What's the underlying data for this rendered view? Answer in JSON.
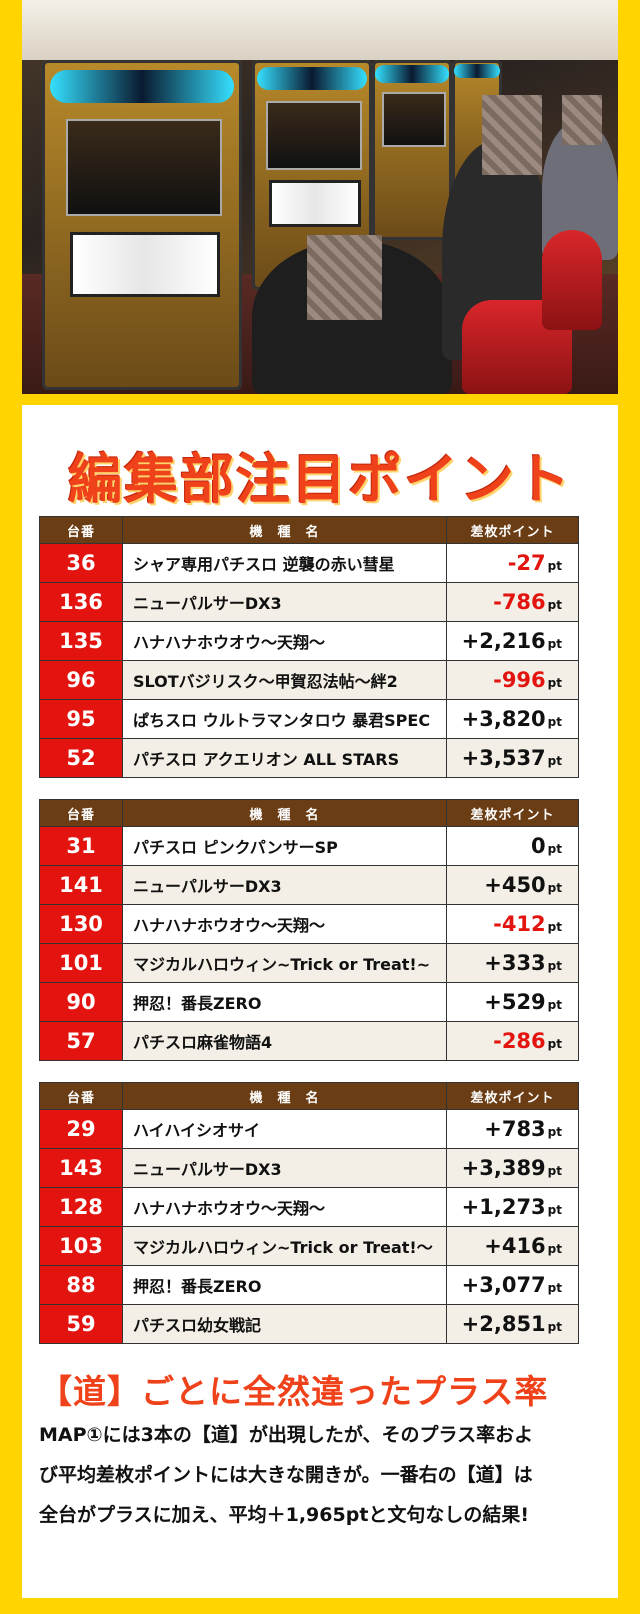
{
  "headline": "編集部注目ポイント",
  "table_headers": {
    "no": "台番",
    "model": "機　種　名",
    "points": "差枚ポイント"
  },
  "unit": "pt",
  "tables": [
    {
      "rows": [
        {
          "no": "36",
          "model": "シャア専用パチスロ 逆襲の赤い彗星",
          "points": "-27",
          "negative": true
        },
        {
          "no": "136",
          "model": "ニューパルサーDX3",
          "points": "-786",
          "negative": true
        },
        {
          "no": "135",
          "model": "ハナハナホウオウ～天翔～",
          "points": "+2,216",
          "negative": false
        },
        {
          "no": "96",
          "model": "SLOTバジリスク～甲賀忍法帖～絆2",
          "points": "-996",
          "negative": true
        },
        {
          "no": "95",
          "model": "ぱちスロ ウルトラマンタロウ 暴君SPEC",
          "points": "+3,820",
          "negative": false
        },
        {
          "no": "52",
          "model": "パチスロ アクエリオン ALL STARS",
          "points": "+3,537",
          "negative": false
        }
      ]
    },
    {
      "rows": [
        {
          "no": "31",
          "model": "パチスロ ピンクパンサーSP",
          "points": "0",
          "negative": false
        },
        {
          "no": "141",
          "model": "ニューパルサーDX3",
          "points": "+450",
          "negative": false
        },
        {
          "no": "130",
          "model": "ハナハナホウオウ～天翔～",
          "points": "-412",
          "negative": true
        },
        {
          "no": "101",
          "model": "マジカルハロウィン~Trick or Treat!~",
          "points": "+333",
          "negative": false
        },
        {
          "no": "90",
          "model": "押忍！番長ZERO",
          "points": "+529",
          "negative": false
        },
        {
          "no": "57",
          "model": "パチスロ麻雀物語4",
          "points": "-286",
          "negative": true
        }
      ]
    },
    {
      "rows": [
        {
          "no": "29",
          "model": "ハイハイシオサイ",
          "points": "+783",
          "negative": false
        },
        {
          "no": "143",
          "model": "ニューパルサーDX3",
          "points": "+3,389",
          "negative": false
        },
        {
          "no": "128",
          "model": "ハナハナホウオウ～天翔～",
          "points": "+1,273",
          "negative": false
        },
        {
          "no": "103",
          "model": "マジカルハロウィン~Trick or Treat!～",
          "points": "+416",
          "negative": false
        },
        {
          "no": "88",
          "model": "押忍！番長ZERO",
          "points": "+3,077",
          "negative": false
        },
        {
          "no": "59",
          "model": "パチスロ幼女戦記",
          "points": "+2,851",
          "negative": false
        }
      ]
    }
  ],
  "subheadline": "【道】ごとに全然違ったプラス率",
  "body_lines": [
    "MAP①には3本の【道】が出現したが、そのプラス率およ",
    "び平均差枚ポイントには大きな開きが。一番右の【道】は",
    "全台がプラスに加え、平均＋1,965ptと文句なしの結果!"
  ],
  "colors": {
    "background": "#ffd400",
    "accent_red": "#e3140f",
    "header_brown": "#6b3d14",
    "headline": "#f0421a"
  }
}
